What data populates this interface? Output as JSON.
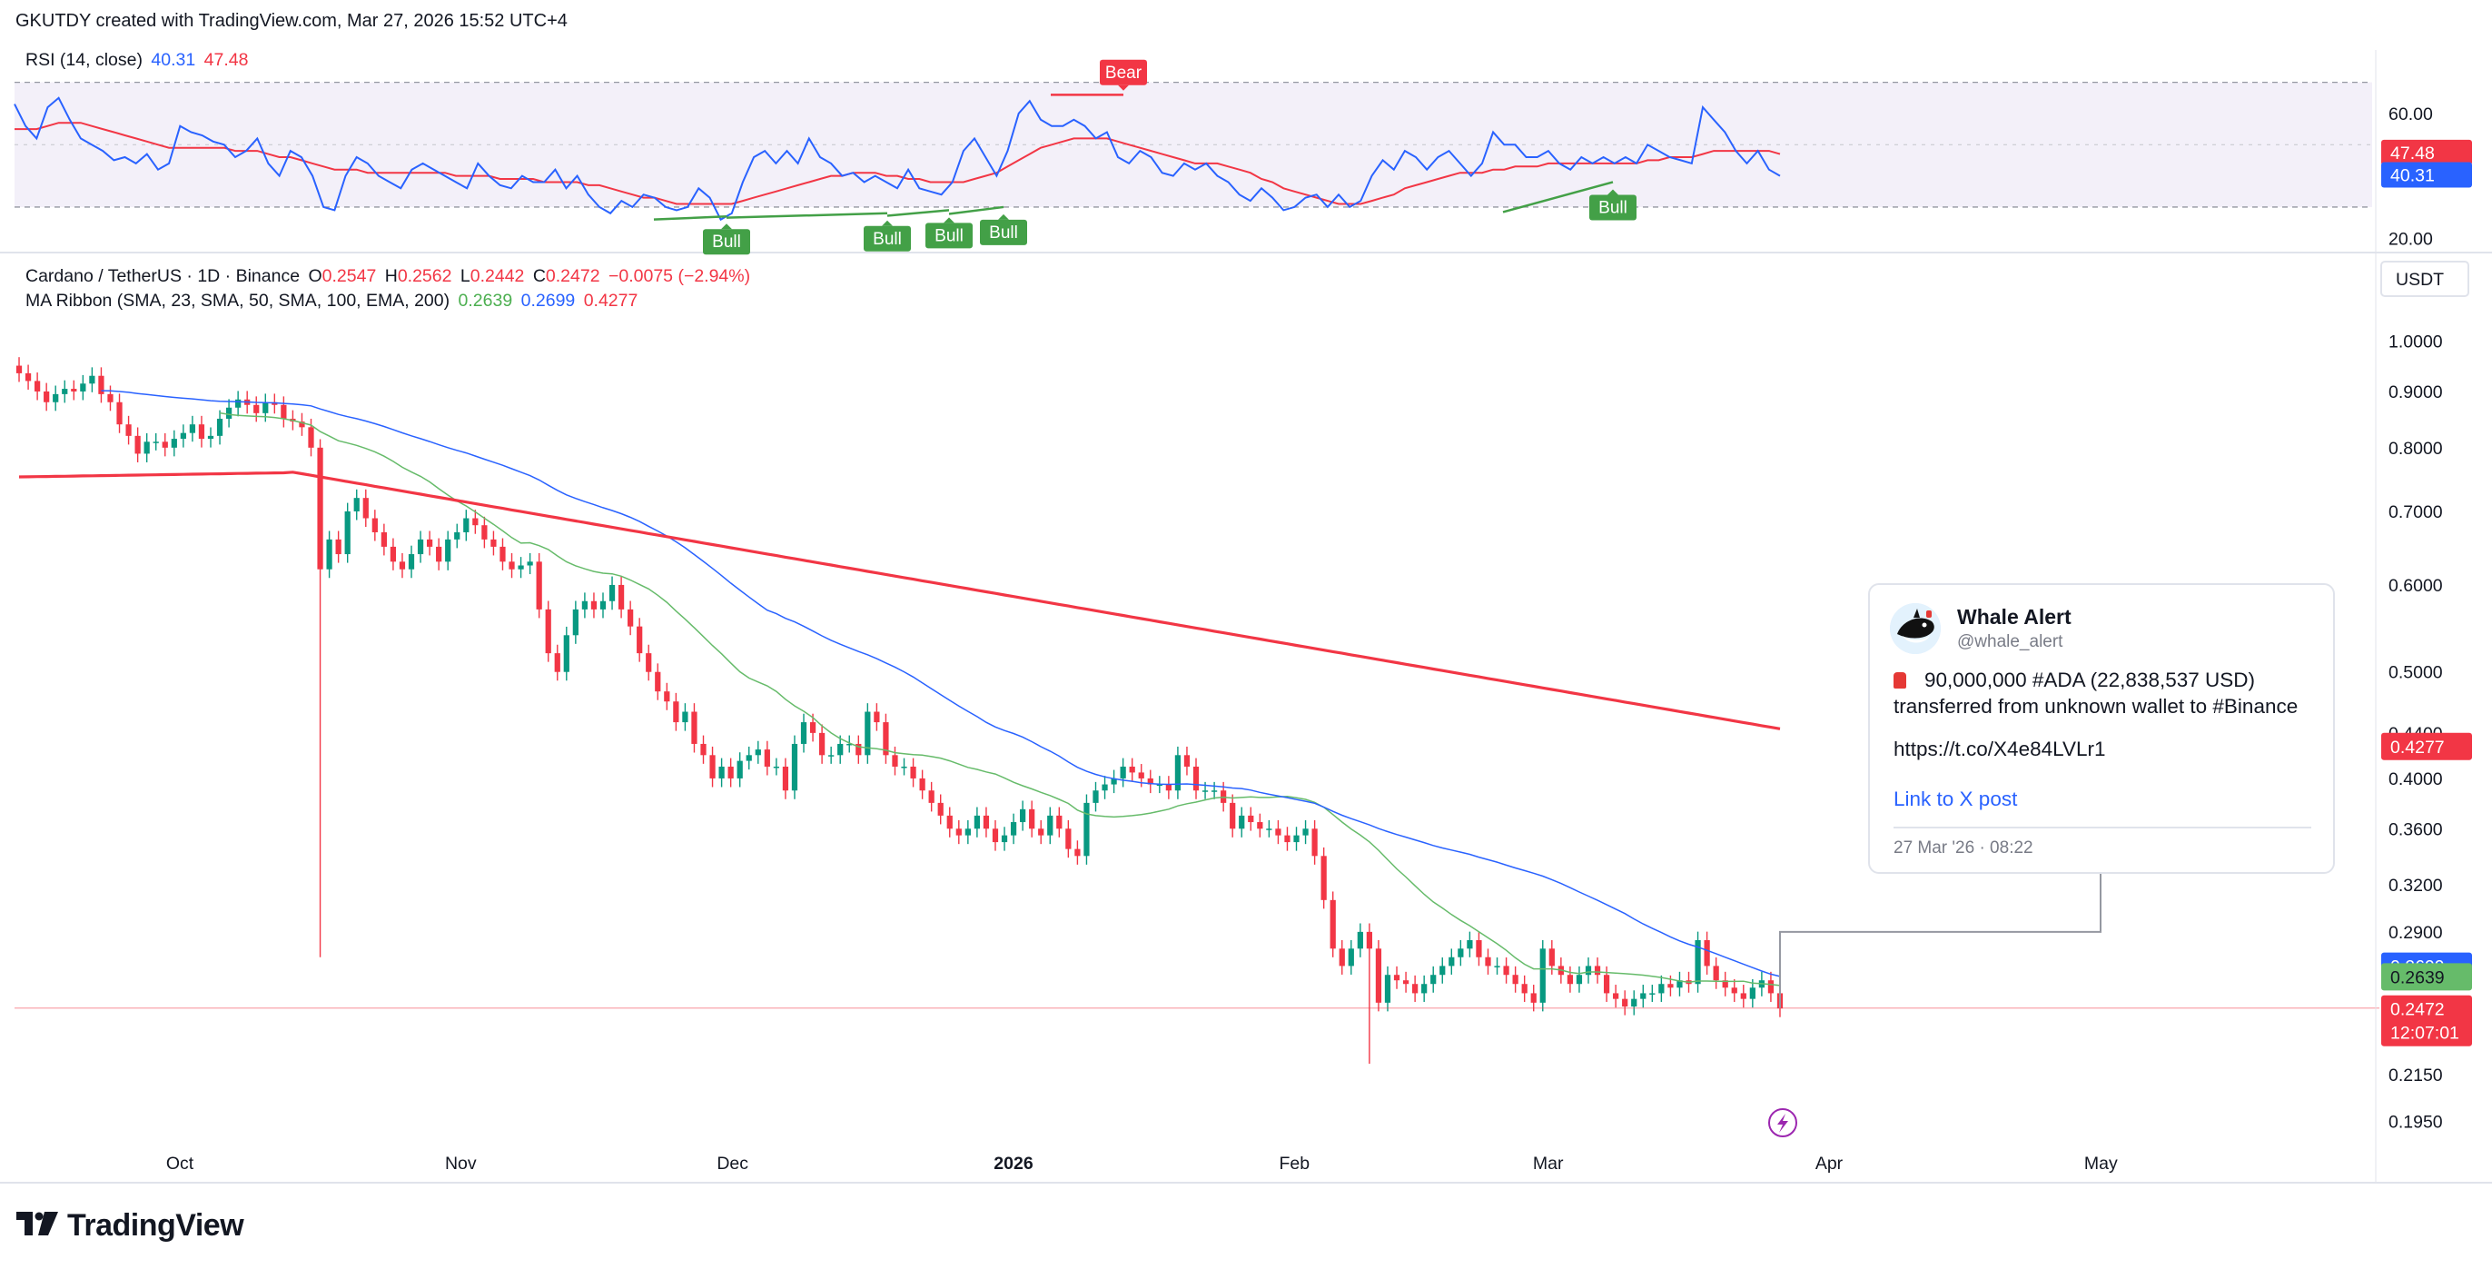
{
  "header": {
    "text": "GKUTDY created with TradingView.com, Mar 27, 2026 15:52 UTC+4"
  },
  "rsi_legend": {
    "label": "RSI (14, close)",
    "rsi": "40.31",
    "ma": "47.48"
  },
  "main_legend": {
    "symbol": "Cardano / TetherUS · 1D · Binance",
    "o_label": "O",
    "o": "0.2547",
    "h_label": "H",
    "h": "0.2562",
    "l_label": "L",
    "l": "0.2442",
    "c_label": "C",
    "c": "0.2472",
    "change": "−0.0075 (−2.94%)"
  },
  "ma_legend": {
    "label": "MA Ribbon (SMA, 23, SMA, 50, SMA, 100, EMA, 200)",
    "v1": "0.2639",
    "v2": "0.2699",
    "v3": "0.4277"
  },
  "currency": "USDT",
  "price_labels": {
    "ema200": "0.4277",
    "sma50": "0.2699",
    "sma23": "0.2639",
    "last": "0.2472",
    "countdown": "12:07:01"
  },
  "rsi_labels": {
    "ma": "47.48",
    "rsi": "40.31"
  },
  "colors": {
    "up": "#089981",
    "down": "#f23645",
    "rsi": "#2962ff",
    "rsi_ma": "#f23645",
    "sma23": "#66bb6a",
    "sma50": "#2962ff",
    "ema200": "#f23645",
    "bull": "#43a047",
    "bear": "#f23645",
    "rsi_band": "#7e57c2"
  },
  "tweet": {
    "name": "Whale Alert",
    "handle": "@whale_alert",
    "line1": "90,000,000 #ADA (22,838,537 USD)",
    "line2": "transferred from unknown wallet to #Binance",
    "url": "https://t.co/X4e84LVLr1",
    "link": "Link to X post",
    "date": "27 Mar '26 · 08:22"
  },
  "logo": "TradingView",
  "chart_data": [
    {
      "type": "line",
      "title": "RSI (14, close)",
      "y_ticks": [
        60.0,
        20.0
      ],
      "ylim": [
        16,
        76
      ],
      "bands": [
        70,
        30
      ],
      "last": {
        "rsi": 40.31,
        "ma": 47.48
      },
      "signals": [
        {
          "label": "Bull",
          "x": "Nov 23",
          "value": 27
        },
        {
          "label": "Bull",
          "x": "Dec 17",
          "value": 28
        },
        {
          "label": "Bull",
          "x": "Dec 24",
          "value": 29
        },
        {
          "label": "Bull",
          "x": "Dec 30",
          "value": 30
        },
        {
          "label": "Bear",
          "x": "Jan 4",
          "value": 65
        },
        {
          "label": "Bull",
          "x": "Mar 11",
          "value": 38
        }
      ],
      "series": [
        {
          "values": [
            63,
            56,
            52,
            62,
            65,
            58,
            52,
            50,
            48,
            45,
            46,
            44,
            47,
            42,
            44,
            56,
            54,
            53,
            51,
            50,
            46,
            48,
            52,
            44,
            40,
            48,
            46,
            40,
            30,
            29,
            40,
            46,
            44,
            40,
            38,
            36,
            42,
            44,
            42,
            40,
            38,
            36,
            44,
            40,
            37,
            36,
            40,
            38,
            38,
            42,
            36,
            40,
            34,
            30,
            28,
            32,
            30,
            34,
            33,
            30,
            29,
            30,
            36,
            33,
            26,
            28,
            38,
            46,
            48,
            44,
            48,
            44,
            52,
            46,
            44,
            40,
            41,
            38,
            40,
            38,
            36,
            42,
            36,
            35,
            34,
            38,
            48,
            52,
            46,
            40,
            48,
            60,
            64,
            58,
            56,
            56,
            58,
            56,
            52,
            54,
            46,
            44,
            48,
            46,
            41,
            40,
            44,
            42,
            44,
            40,
            38,
            34,
            32,
            36,
            33,
            29,
            30,
            33,
            34,
            30,
            34,
            30,
            32,
            40,
            45,
            42,
            48,
            46,
            42,
            46,
            48,
            44,
            40,
            44,
            54,
            50,
            50,
            46,
            46,
            48,
            44,
            42,
            46,
            44,
            46,
            44,
            46,
            44,
            50,
            48,
            46,
            45,
            44,
            62,
            58,
            54,
            48,
            44,
            48,
            42,
            40
          ]
        },
        {
          "values": [
            55,
            55,
            55,
            56,
            57,
            57,
            57,
            56,
            55,
            54,
            53,
            52,
            51,
            50,
            49,
            49,
            49,
            49,
            49,
            49,
            48,
            48,
            48,
            47,
            46,
            46,
            45,
            44,
            43,
            42,
            42,
            42,
            41,
            41,
            41,
            41,
            41,
            41,
            41,
            41,
            40,
            40,
            40,
            40,
            39,
            39,
            39,
            39,
            38,
            38,
            38,
            38,
            37,
            37,
            36,
            35,
            34,
            33,
            33,
            32,
            31,
            31,
            31,
            31,
            31,
            31,
            32,
            33,
            34,
            35,
            36,
            37,
            38,
            39,
            40,
            40,
            41,
            41,
            41,
            40,
            40,
            39,
            39,
            38,
            38,
            38,
            38,
            39,
            40,
            41,
            43,
            45,
            47,
            49,
            50,
            51,
            52,
            52,
            52,
            52,
            51,
            50,
            49,
            48,
            47,
            46,
            45,
            44,
            44,
            44,
            43,
            42,
            41,
            39,
            38,
            36,
            35,
            34,
            33,
            32,
            31,
            31,
            31,
            32,
            33,
            34,
            36,
            37,
            38,
            39,
            40,
            41,
            41,
            41,
            42,
            42,
            43,
            43,
            43,
            44,
            44,
            44,
            44,
            44,
            44,
            44,
            44,
            44,
            45,
            45,
            46,
            46,
            46,
            47,
            48,
            48,
            48,
            48,
            48,
            48,
            47
          ]
        }
      ]
    },
    {
      "type": "candlestick",
      "title": "Cardano / TetherUS · 1D · Binance",
      "y_scale": "log",
      "ylim": [
        0.185,
        1.06
      ],
      "y_ticks": [
        1.0,
        0.9,
        0.8,
        0.7,
        0.6,
        0.5,
        0.44,
        0.4,
        0.36,
        0.32,
        0.29,
        0.215,
        0.195
      ],
      "x_range": [
        "Sep 15, 2025",
        "Jun 1, 2026"
      ],
      "x_ticks": [
        "Oct",
        "Nov",
        "Dec",
        "2026",
        "Feb",
        "Mar",
        "Apr",
        "May"
      ],
      "close": [
        0.935,
        0.92,
        0.9,
        0.88,
        0.895,
        0.905,
        0.9,
        0.915,
        0.93,
        0.895,
        0.88,
        0.84,
        0.82,
        0.79,
        0.81,
        0.81,
        0.8,
        0.815,
        0.825,
        0.84,
        0.815,
        0.82,
        0.85,
        0.87,
        0.885,
        0.875,
        0.86,
        0.88,
        0.875,
        0.85,
        0.845,
        0.835,
        0.8,
        0.62,
        0.66,
        0.64,
        0.7,
        0.72,
        0.69,
        0.67,
        0.65,
        0.63,
        0.62,
        0.64,
        0.66,
        0.65,
        0.63,
        0.66,
        0.67,
        0.69,
        0.68,
        0.66,
        0.65,
        0.63,
        0.62,
        0.625,
        0.63,
        0.57,
        0.52,
        0.5,
        0.54,
        0.57,
        0.58,
        0.57,
        0.58,
        0.6,
        0.57,
        0.55,
        0.52,
        0.5,
        0.48,
        0.47,
        0.45,
        0.46,
        0.43,
        0.42,
        0.4,
        0.41,
        0.4,
        0.415,
        0.42,
        0.425,
        0.41,
        0.41,
        0.39,
        0.43,
        0.45,
        0.44,
        0.42,
        0.42,
        0.43,
        0.43,
        0.42,
        0.46,
        0.45,
        0.42,
        0.41,
        0.41,
        0.4,
        0.39,
        0.38,
        0.37,
        0.36,
        0.355,
        0.36,
        0.37,
        0.36,
        0.35,
        0.355,
        0.365,
        0.375,
        0.36,
        0.355,
        0.37,
        0.36,
        0.345,
        0.34,
        0.38,
        0.39,
        0.395,
        0.4,
        0.41,
        0.405,
        0.4,
        0.395,
        0.395,
        0.39,
        0.42,
        0.41,
        0.39,
        0.39,
        0.39,
        0.38,
        0.36,
        0.37,
        0.365,
        0.36,
        0.36,
        0.355,
        0.35,
        0.355,
        0.36,
        0.34,
        0.31,
        0.28,
        0.27,
        0.28,
        0.29,
        0.28,
        0.25,
        0.265,
        0.262,
        0.26,
        0.255,
        0.26,
        0.265,
        0.27,
        0.275,
        0.28,
        0.285,
        0.275,
        0.27,
        0.27,
        0.265,
        0.26,
        0.255,
        0.25,
        0.28,
        0.27,
        0.265,
        0.26,
        0.265,
        0.27,
        0.265,
        0.255,
        0.252,
        0.248,
        0.252,
        0.255,
        0.255,
        0.26,
        0.258,
        0.262,
        0.26,
        0.285,
        0.27,
        0.262,
        0.258,
        0.255,
        0.252,
        0.258,
        0.262,
        0.255,
        0.247
      ],
      "series": [
        {
          "name": "SMA 23",
          "last": 0.2639
        },
        {
          "name": "SMA 50",
          "last": 0.2699
        },
        {
          "name": "SMA 100",
          "last": 0.4277
        },
        {
          "name": "EMA 200",
          "last": 0.4277
        }
      ],
      "last_price": 0.2472,
      "annotation": "0.2900"
    }
  ]
}
